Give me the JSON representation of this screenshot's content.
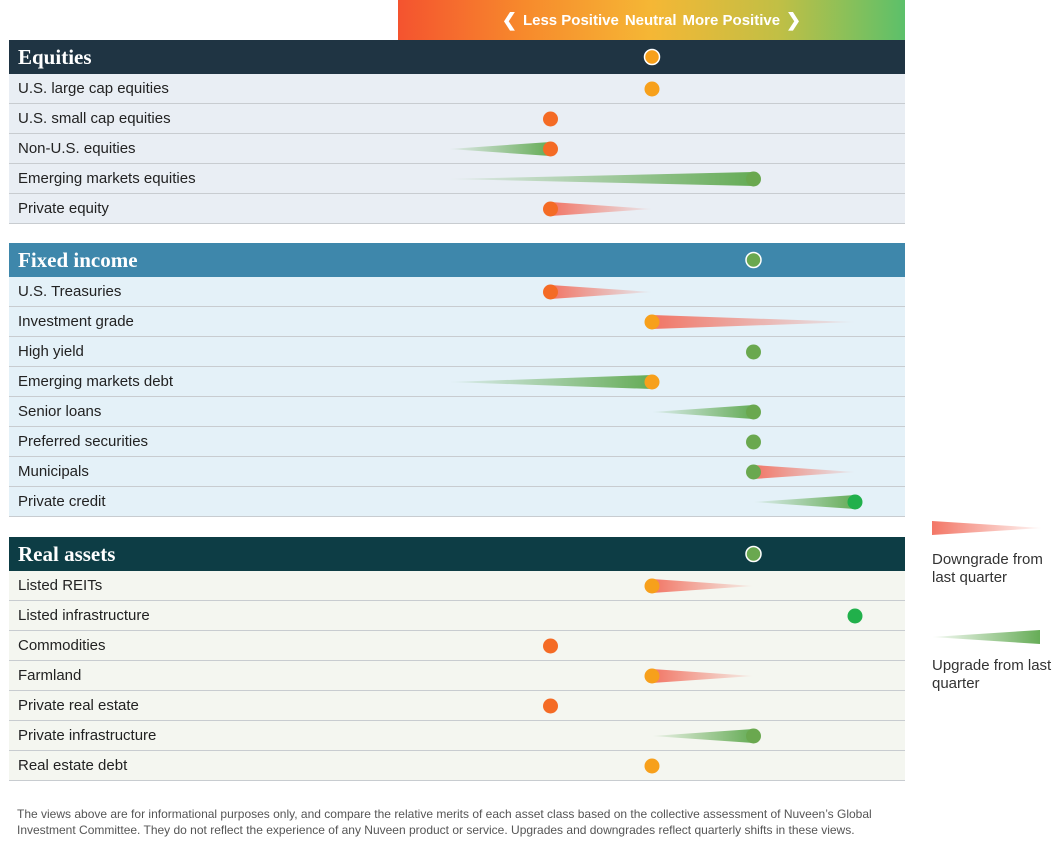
{
  "scale": {
    "left_arrow": "❮",
    "less": "Less Positive",
    "neutral": "Neutral",
    "more": "More Positive",
    "right_arrow": "❯"
  },
  "colors": {
    "equities_header": "#1f3443",
    "equities_row": "#e9eef4",
    "fixed_header": "#3e87ab",
    "fixed_row": "#e4f1f8",
    "real_header": "#0d3d45",
    "real_row": "#f4f6f0",
    "dot_1": "#f46b25",
    "dot_2": "#f7a01b",
    "dot_3": "#6aa84f",
    "dot_4": "#21b04b",
    "downgrade": "#f26f5e",
    "upgrade": "#5ea84e"
  },
  "chart_data": {
    "type": "scatter",
    "scale_levels": [
      "Less Positive",
      "Neutral",
      "More Positive"
    ],
    "sections": [
      {
        "name": "Equities",
        "level": 2,
        "rows": [
          {
            "name": "U.S. large cap equities",
            "level": 2,
            "prev": 2
          },
          {
            "name": "U.S. small cap equities",
            "level": 1,
            "prev": 1
          },
          {
            "name": "Non-U.S. equities",
            "level": 1,
            "prev": 0
          },
          {
            "name": "Emerging markets equities",
            "level": 3,
            "prev": 0
          },
          {
            "name": "Private equity",
            "level": 1,
            "prev": 2
          }
        ]
      },
      {
        "name": "Fixed income",
        "level": 3,
        "rows": [
          {
            "name": "U.S. Treasuries",
            "level": 1,
            "prev": 2
          },
          {
            "name": "Investment grade",
            "level": 2,
            "prev": 4
          },
          {
            "name": "High yield",
            "level": 3,
            "prev": 3
          },
          {
            "name": "Emerging markets debt",
            "level": 2,
            "prev": 0
          },
          {
            "name": "Senior loans",
            "level": 3,
            "prev": 2
          },
          {
            "name": "Preferred securities",
            "level": 3,
            "prev": 3
          },
          {
            "name": "Municipals",
            "level": 3,
            "prev": 4
          },
          {
            "name": "Private credit",
            "level": 4,
            "prev": 3
          }
        ]
      },
      {
        "name": "Real assets",
        "level": 3,
        "rows": [
          {
            "name": "Listed REITs",
            "level": 2,
            "prev": 3
          },
          {
            "name": "Listed infrastructure",
            "level": 4,
            "prev": 4
          },
          {
            "name": "Commodities",
            "level": 1,
            "prev": 1
          },
          {
            "name": "Farmland",
            "level": 2,
            "prev": 3
          },
          {
            "name": "Private real estate",
            "level": 1,
            "prev": 1
          },
          {
            "name": "Private infrastructure",
            "level": 3,
            "prev": 2
          },
          {
            "name": "Real estate debt",
            "level": 2,
            "prev": 2
          }
        ]
      }
    ]
  },
  "legend": {
    "downgrade": "Downgrade from last quarter",
    "upgrade": "Upgrade from last quarter"
  },
  "footnote": "The views above are for informational purposes only, and compare the relative merits of each asset class based on the collective assessment of Nuveen’s Global Investment Committee. They do not reflect the experience of any Nuveen product or service. Upgrades and downgrades reflect quarterly shifts in these views."
}
